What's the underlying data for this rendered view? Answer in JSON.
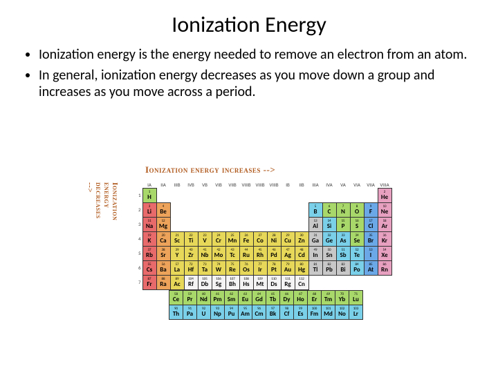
{
  "title": "Ionization Energy",
  "bullets": [
    "Ionization energy is the energy needed to remove an electron from an atom.",
    "In general, ionization energy decreases as you move down a group and increases as you move across a period."
  ],
  "figure": {
    "top_label": "Ionization energy increases -->",
    "side_label": "Ionization energy decreases -->",
    "colors": {
      "red": "#e86a6a",
      "orange": "#eda35a",
      "yellow": "#e8d85a",
      "green": "#a8d86a",
      "cyan": "#7ad0e8",
      "blue": "#6aa8e8",
      "pink": "#e8a0c0",
      "grey": "#c8c8c8",
      "white": "#f4f4f4"
    },
    "group_headers": [
      "IA",
      "IIA",
      "IIIB",
      "IVB",
      "VB",
      "VIB",
      "VIIB",
      "VIIIB",
      "VIIIB",
      "VIIIB",
      "IB",
      "IIB",
      "IIIA",
      "IVA",
      "VA",
      "VIA",
      "VIIA",
      "VIIIA"
    ],
    "periods": [
      [
        null,
        {
          "n": "1",
          "s": "H",
          "c": "green"
        },
        null,
        null,
        null,
        null,
        null,
        null,
        null,
        null,
        null,
        null,
        null,
        null,
        null,
        null,
        null,
        null,
        {
          "n": "2",
          "s": "He",
          "c": "pink"
        }
      ],
      [
        null,
        {
          "n": "3",
          "s": "Li",
          "c": "red"
        },
        {
          "n": "4",
          "s": "Be",
          "c": "orange"
        },
        null,
        null,
        null,
        null,
        null,
        null,
        null,
        null,
        null,
        null,
        {
          "n": "5",
          "s": "B",
          "c": "cyan"
        },
        {
          "n": "6",
          "s": "C",
          "c": "green"
        },
        {
          "n": "7",
          "s": "N",
          "c": "green"
        },
        {
          "n": "8",
          "s": "O",
          "c": "green"
        },
        {
          "n": "9",
          "s": "F",
          "c": "blue"
        },
        {
          "n": "10",
          "s": "Ne",
          "c": "pink"
        }
      ],
      [
        null,
        {
          "n": "11",
          "s": "Na",
          "c": "red"
        },
        {
          "n": "12",
          "s": "Mg",
          "c": "orange"
        },
        null,
        null,
        null,
        null,
        null,
        null,
        null,
        null,
        null,
        null,
        {
          "n": "13",
          "s": "Al",
          "c": "grey"
        },
        {
          "n": "14",
          "s": "Si",
          "c": "cyan"
        },
        {
          "n": "15",
          "s": "P",
          "c": "green"
        },
        {
          "n": "16",
          "s": "S",
          "c": "green"
        },
        {
          "n": "17",
          "s": "Cl",
          "c": "blue"
        },
        {
          "n": "18",
          "s": "Ar",
          "c": "pink"
        }
      ],
      [
        null,
        {
          "n": "19",
          "s": "K",
          "c": "red"
        },
        {
          "n": "20",
          "s": "Ca",
          "c": "orange"
        },
        {
          "n": "21",
          "s": "Sc",
          "c": "yellow"
        },
        {
          "n": "22",
          "s": "Ti",
          "c": "yellow"
        },
        {
          "n": "23",
          "s": "V",
          "c": "yellow"
        },
        {
          "n": "24",
          "s": "Cr",
          "c": "yellow"
        },
        {
          "n": "25",
          "s": "Mn",
          "c": "yellow"
        },
        {
          "n": "26",
          "s": "Fe",
          "c": "yellow"
        },
        {
          "n": "27",
          "s": "Co",
          "c": "yellow"
        },
        {
          "n": "28",
          "s": "Ni",
          "c": "yellow"
        },
        {
          "n": "29",
          "s": "Cu",
          "c": "yellow"
        },
        {
          "n": "30",
          "s": "Zn",
          "c": "yellow"
        },
        {
          "n": "31",
          "s": "Ga",
          "c": "grey"
        },
        {
          "n": "32",
          "s": "Ge",
          "c": "cyan"
        },
        {
          "n": "33",
          "s": "As",
          "c": "cyan"
        },
        {
          "n": "34",
          "s": "Se",
          "c": "green"
        },
        {
          "n": "35",
          "s": "Br",
          "c": "blue"
        },
        {
          "n": "36",
          "s": "Kr",
          "c": "pink"
        }
      ],
      [
        null,
        {
          "n": "37",
          "s": "Rb",
          "c": "red"
        },
        {
          "n": "38",
          "s": "Sr",
          "c": "orange"
        },
        {
          "n": "39",
          "s": "Y",
          "c": "yellow"
        },
        {
          "n": "40",
          "s": "Zr",
          "c": "yellow"
        },
        {
          "n": "41",
          "s": "Nb",
          "c": "yellow"
        },
        {
          "n": "42",
          "s": "Mo",
          "c": "yellow"
        },
        {
          "n": "43",
          "s": "Tc",
          "c": "yellow"
        },
        {
          "n": "44",
          "s": "Ru",
          "c": "yellow"
        },
        {
          "n": "45",
          "s": "Rh",
          "c": "yellow"
        },
        {
          "n": "46",
          "s": "Pd",
          "c": "yellow"
        },
        {
          "n": "47",
          "s": "Ag",
          "c": "yellow"
        },
        {
          "n": "48",
          "s": "Cd",
          "c": "yellow"
        },
        {
          "n": "49",
          "s": "In",
          "c": "grey"
        },
        {
          "n": "50",
          "s": "Sn",
          "c": "grey"
        },
        {
          "n": "51",
          "s": "Sb",
          "c": "cyan"
        },
        {
          "n": "52",
          "s": "Te",
          "c": "cyan"
        },
        {
          "n": "53",
          "s": "I",
          "c": "blue"
        },
        {
          "n": "54",
          "s": "Xe",
          "c": "pink"
        }
      ],
      [
        null,
        {
          "n": "55",
          "s": "Cs",
          "c": "red"
        },
        {
          "n": "56",
          "s": "Ba",
          "c": "orange"
        },
        {
          "n": "57",
          "s": "La",
          "c": "yellow"
        },
        {
          "n": "72",
          "s": "Hf",
          "c": "yellow"
        },
        {
          "n": "73",
          "s": "Ta",
          "c": "yellow"
        },
        {
          "n": "74",
          "s": "W",
          "c": "yellow"
        },
        {
          "n": "75",
          "s": "Re",
          "c": "yellow"
        },
        {
          "n": "76",
          "s": "Os",
          "c": "yellow"
        },
        {
          "n": "77",
          "s": "Ir",
          "c": "yellow"
        },
        {
          "n": "78",
          "s": "Pt",
          "c": "yellow"
        },
        {
          "n": "79",
          "s": "Au",
          "c": "yellow"
        },
        {
          "n": "80",
          "s": "Hg",
          "c": "yellow"
        },
        {
          "n": "81",
          "s": "Tl",
          "c": "grey"
        },
        {
          "n": "82",
          "s": "Pb",
          "c": "grey"
        },
        {
          "n": "83",
          "s": "Bi",
          "c": "grey"
        },
        {
          "n": "84",
          "s": "Po",
          "c": "cyan"
        },
        {
          "n": "85",
          "s": "At",
          "c": "blue"
        },
        {
          "n": "86",
          "s": "Rn",
          "c": "pink"
        }
      ],
      [
        null,
        {
          "n": "87",
          "s": "Fr",
          "c": "red"
        },
        {
          "n": "88",
          "s": "Ra",
          "c": "orange"
        },
        {
          "n": "89",
          "s": "Ac",
          "c": "yellow"
        },
        {
          "n": "104",
          "s": "Rf",
          "c": "white"
        },
        {
          "n": "105",
          "s": "Db",
          "c": "white"
        },
        {
          "n": "106",
          "s": "Sg",
          "c": "white"
        },
        {
          "n": "107",
          "s": "Bh",
          "c": "white"
        },
        {
          "n": "108",
          "s": "Hs",
          "c": "white"
        },
        {
          "n": "109",
          "s": "Mt",
          "c": "white"
        },
        {
          "n": "110",
          "s": "Ds",
          "c": "white"
        },
        {
          "n": "111",
          "s": "Rg",
          "c": "white"
        },
        {
          "n": "112",
          "s": "Cn",
          "c": "white"
        },
        null,
        null,
        null,
        null,
        null,
        null
      ]
    ],
    "lanth": [
      [
        {
          "n": "58",
          "s": "Ce",
          "c": "green"
        },
        {
          "n": "59",
          "s": "Pr",
          "c": "green"
        },
        {
          "n": "60",
          "s": "Nd",
          "c": "green"
        },
        {
          "n": "61",
          "s": "Pm",
          "c": "green"
        },
        {
          "n": "62",
          "s": "Sm",
          "c": "green"
        },
        {
          "n": "63",
          "s": "Eu",
          "c": "green"
        },
        {
          "n": "64",
          "s": "Gd",
          "c": "green"
        },
        {
          "n": "65",
          "s": "Tb",
          "c": "green"
        },
        {
          "n": "66",
          "s": "Dy",
          "c": "green"
        },
        {
          "n": "67",
          "s": "Ho",
          "c": "green"
        },
        {
          "n": "68",
          "s": "Er",
          "c": "green"
        },
        {
          "n": "69",
          "s": "Tm",
          "c": "green"
        },
        {
          "n": "70",
          "s": "Yb",
          "c": "green"
        },
        {
          "n": "71",
          "s": "Lu",
          "c": "green"
        }
      ],
      [
        {
          "n": "90",
          "s": "Th",
          "c": "cyan"
        },
        {
          "n": "91",
          "s": "Pa",
          "c": "cyan"
        },
        {
          "n": "92",
          "s": "U",
          "c": "cyan"
        },
        {
          "n": "93",
          "s": "Np",
          "c": "cyan"
        },
        {
          "n": "94",
          "s": "Pu",
          "c": "cyan"
        },
        {
          "n": "95",
          "s": "Am",
          "c": "cyan"
        },
        {
          "n": "96",
          "s": "Cm",
          "c": "cyan"
        },
        {
          "n": "97",
          "s": "Bk",
          "c": "cyan"
        },
        {
          "n": "98",
          "s": "Cf",
          "c": "cyan"
        },
        {
          "n": "99",
          "s": "Es",
          "c": "cyan"
        },
        {
          "n": "100",
          "s": "Fm",
          "c": "cyan"
        },
        {
          "n": "101",
          "s": "Md",
          "c": "cyan"
        },
        {
          "n": "102",
          "s": "No",
          "c": "cyan"
        },
        {
          "n": "103",
          "s": "Lr",
          "c": "cyan"
        }
      ]
    ]
  }
}
